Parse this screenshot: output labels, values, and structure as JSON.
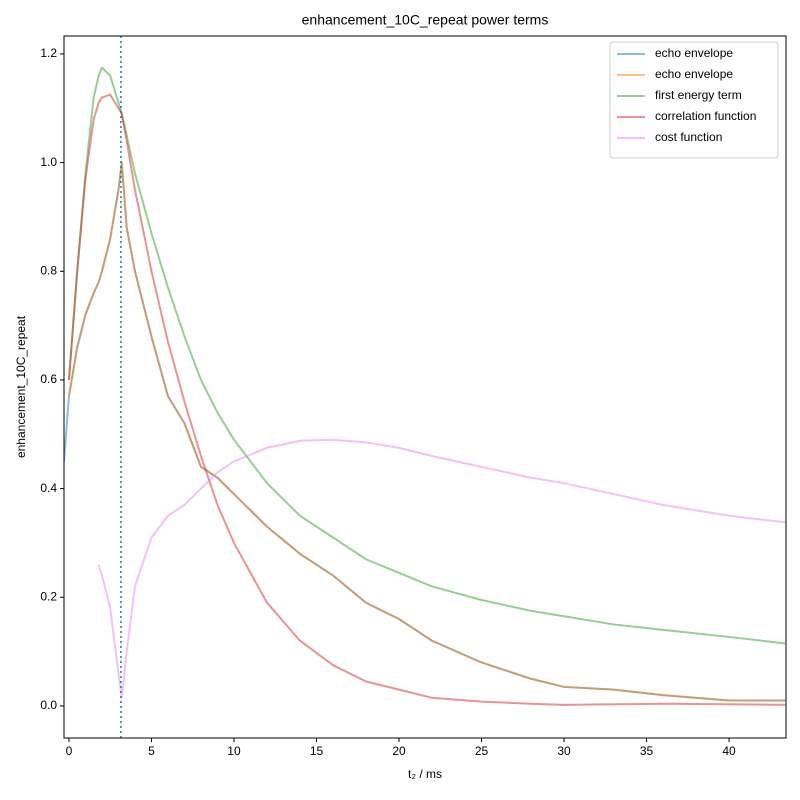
{
  "chart_data": {
    "type": "line",
    "title": "enhancement_10C_repeat power terms",
    "xlabel": "t₂ / ms",
    "ylabel": "enhancement_10C_repeat",
    "x": [
      -0.3,
      0,
      0.5,
      1,
      1.5,
      1.8,
      2,
      2.5,
      3,
      3.2,
      3.5,
      4,
      5,
      6,
      7,
      8,
      9,
      10,
      12,
      14,
      16,
      18,
      20,
      22,
      25,
      28,
      30,
      33,
      36,
      40,
      43.4
    ],
    "series": [
      {
        "name": "echo envelope",
        "color": "#1f77b4",
        "values": [
          0.45,
          0.57,
          0.66,
          0.72,
          0.76,
          0.78,
          0.8,
          0.86,
          0.95,
          1.0,
          0.88,
          0.8,
          0.68,
          0.57,
          0.52,
          0.44,
          0.42,
          0.39,
          0.33,
          0.28,
          0.24,
          0.19,
          0.16,
          0.12,
          0.08,
          0.05,
          0.035,
          0.03,
          0.02,
          0.01,
          0.01
        ]
      },
      {
        "name": "echo envelope",
        "color": "#ff7f0e",
        "values": [
          null,
          0.57,
          0.66,
          0.72,
          0.76,
          0.78,
          0.8,
          0.86,
          0.95,
          1.0,
          0.88,
          0.8,
          0.68,
          0.57,
          0.52,
          0.44,
          0.42,
          0.39,
          0.33,
          0.28,
          0.24,
          0.19,
          0.16,
          0.12,
          0.08,
          0.05,
          0.035,
          0.03,
          0.02,
          0.01,
          0.01
        ]
      },
      {
        "name": "first energy term",
        "color": "#2ca02c",
        "values": [
          null,
          0.6,
          0.8,
          0.98,
          1.12,
          1.16,
          1.175,
          1.16,
          1.11,
          1.09,
          1.05,
          0.98,
          0.87,
          0.77,
          0.68,
          0.6,
          0.54,
          0.49,
          0.41,
          0.35,
          0.31,
          0.27,
          0.245,
          0.22,
          0.195,
          0.175,
          0.165,
          0.15,
          0.14,
          0.127,
          0.115
        ]
      },
      {
        "name": "correlation function",
        "color": "#d62728",
        "values": [
          null,
          0.6,
          0.8,
          0.97,
          1.08,
          1.11,
          1.12,
          1.125,
          1.1,
          1.09,
          1.04,
          0.95,
          0.8,
          0.67,
          0.56,
          0.46,
          0.37,
          0.3,
          0.19,
          0.12,
          0.075,
          0.045,
          0.03,
          0.015,
          0.008,
          0.004,
          0.002,
          0.003,
          0.004,
          0.003,
          0.002
        ]
      },
      {
        "name": "cost function",
        "color": "#ee82ee",
        "values": [
          null,
          null,
          null,
          null,
          null,
          0.26,
          0.24,
          0.18,
          0.06,
          0.015,
          0.1,
          0.22,
          0.31,
          0.35,
          0.37,
          0.4,
          0.43,
          0.45,
          0.475,
          0.488,
          0.49,
          0.485,
          0.475,
          0.46,
          0.44,
          0.42,
          0.41,
          0.39,
          0.37,
          0.35,
          0.338
        ]
      }
    ],
    "alpha": 0.5,
    "vline": {
      "x": 3.15,
      "color": "#1f77b4"
    },
    "xlim": [
      -0.3,
      43.45
    ],
    "ylim": [
      -0.059,
      1.233
    ],
    "xticks": [
      0,
      5,
      10,
      15,
      20,
      25,
      30,
      35,
      40
    ],
    "yticks": [
      {
        "value": 0,
        "label": "0.0"
      },
      {
        "value": 0.2,
        "label": "0.2"
      },
      {
        "value": 0.4,
        "label": "0.4"
      },
      {
        "value": 0.6,
        "label": "0.6"
      },
      {
        "value": 0.8,
        "label": "0.8"
      },
      {
        "value": 1.0,
        "label": "1.0"
      },
      {
        "value": 1.2,
        "label": "1.2"
      }
    ],
    "legend": "upper right"
  }
}
